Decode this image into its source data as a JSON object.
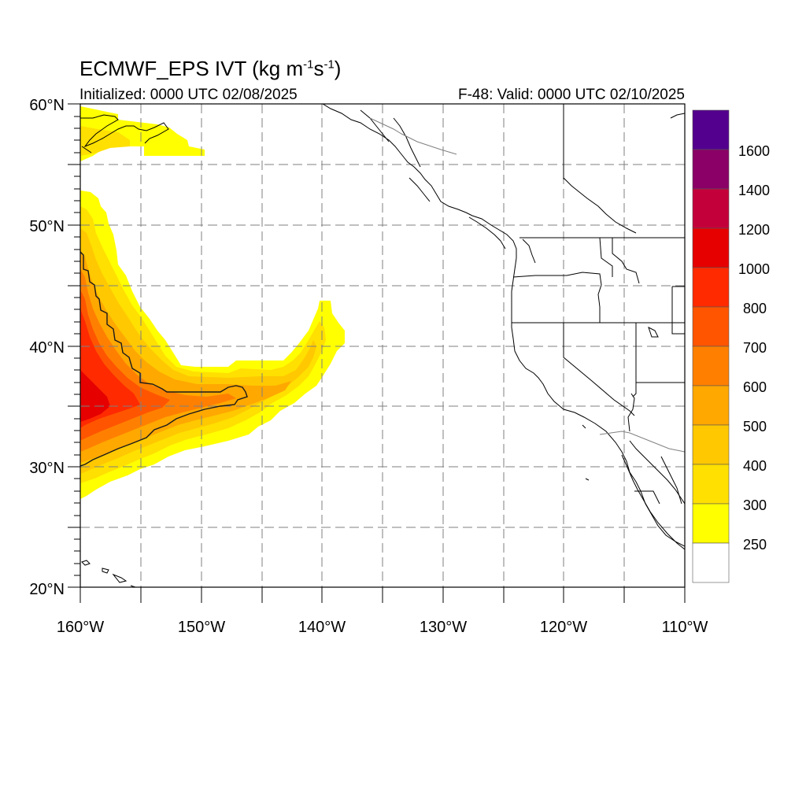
{
  "title": {
    "model": "ECMWF_EPS IVT (kg m",
    "exp1": "-1",
    "mid": "s",
    "exp2": "-1",
    "close": ")"
  },
  "init_label": "Initialized: 0000 UTC 02/08/2025",
  "valid_label": "F-48: Valid: 0000 UTC 02/10/2025",
  "axes": {
    "lon_range": [
      -160,
      -110
    ],
    "lat_range": [
      20,
      60
    ],
    "lat_ticks": [
      {
        "value": 60,
        "label": "60°N"
      },
      {
        "value": 50,
        "label": "50°N"
      },
      {
        "value": 40,
        "label": "40°N"
      },
      {
        "value": 30,
        "label": "30°N"
      },
      {
        "value": 20,
        "label": "20°N"
      }
    ],
    "lon_ticks": [
      {
        "value": -160,
        "label": "160°W"
      },
      {
        "value": -150,
        "label": "150°W"
      },
      {
        "value": -140,
        "label": "140°W"
      },
      {
        "value": -130,
        "label": "130°W"
      },
      {
        "value": -120,
        "label": "120°W"
      },
      {
        "value": -110,
        "label": "110°W"
      }
    ],
    "grid": true,
    "grid_step_deg": 5
  },
  "colorbar": {
    "levels": [
      250,
      300,
      400,
      500,
      600,
      700,
      800,
      1000,
      1200,
      1400,
      1600
    ],
    "labels": [
      "250",
      "300",
      "400",
      "500",
      "600",
      "700",
      "800",
      "1000",
      "1200",
      "1400",
      "1600"
    ],
    "colors": [
      "#ffffff",
      "#ffff00",
      "#ffe000",
      "#ffc800",
      "#ffa800",
      "#ff8000",
      "#ff5500",
      "#ff2a00",
      "#e60000",
      "#c4003a",
      "#8a0066",
      "#54008e"
    ]
  },
  "colors": {
    "grid": "#7f7f7f",
    "coast": "#000000",
    "border": "#9a9a9a",
    "contour": "#1a1a1a"
  }
}
